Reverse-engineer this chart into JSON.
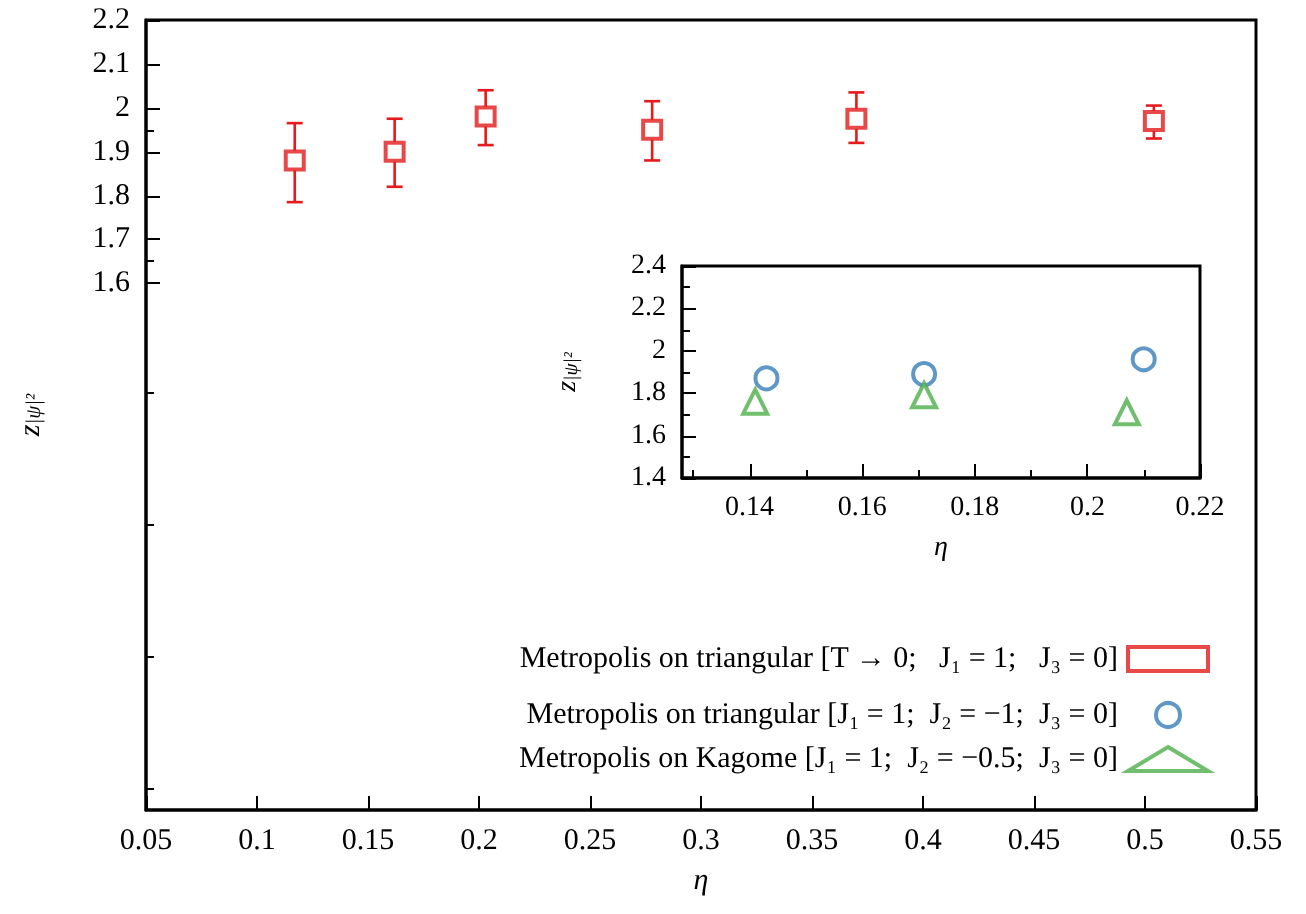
{
  "chart_data": [
    {
      "type": "scatter",
      "xlabel": "η",
      "ylabel": "z$_{|ψ|²}$",
      "xlim": [
        0.05,
        0.55
      ],
      "ylim": [
        0.4,
        2.2
      ],
      "xticks": [
        0.05,
        0.1,
        0.15,
        0.2,
        0.25,
        0.3,
        0.35,
        0.4,
        0.45,
        0.5,
        0.55
      ],
      "yticks": [
        1.6,
        1.7,
        1.8,
        1.9,
        2,
        2.1,
        2.2
      ],
      "grid": false,
      "legend": "bottom right",
      "marker": "square",
      "series": [
        {
          "name": "Metropolis on triangular [T → 0;   J₁ = 1;   J₃ = 0]",
          "color": "#e41a1c",
          "x": [
            0.117,
            0.162,
            0.203,
            0.278,
            0.37,
            0.504
          ],
          "values": [
            1.88,
            1.9,
            1.98,
            1.95,
            1.975,
            1.97
          ],
          "errors": [
            [
              1.785,
              1.965
            ],
            [
              1.82,
              1.975
            ],
            [
              1.915,
              2.04
            ],
            [
              1.88,
              2.015
            ],
            [
              1.92,
              2.035
            ],
            [
              1.93,
              2.005
            ]
          ]
        }
      ]
    },
    {
      "type": "scatter",
      "xlabel": "η",
      "ylabel": "z$_{|ψ|²}$",
      "xlim": [
        0.128,
        0.22
      ],
      "ylim": [
        1.4,
        2.4
      ],
      "xticks": [
        0.14,
        0.16,
        0.18,
        0.2,
        0.22
      ],
      "yticks": [
        1.4,
        1.6,
        1.8,
        2,
        2.2,
        2.4
      ],
      "grid": false,
      "legend": "bottom",
      "series": [
        {
          "name": "Metropolis on triangular [J₁ = 1;  J₂ = −1;  J₃ = 0]",
          "color": "#377eb8",
          "marker": "circle",
          "x": [
            0.143,
            0.171,
            0.21
          ],
          "values": [
            1.87,
            1.89,
            1.96
          ]
        },
        {
          "name": "Metropolis on Kagome [J₁ = 1;  J₂ = −0.5;  J₃ = 0]",
          "color": "#4daf4a",
          "marker": "triangle",
          "x": [
            0.141,
            0.171,
            0.207
          ],
          "values": [
            1.76,
            1.79,
            1.71
          ]
        }
      ]
    }
  ]
}
